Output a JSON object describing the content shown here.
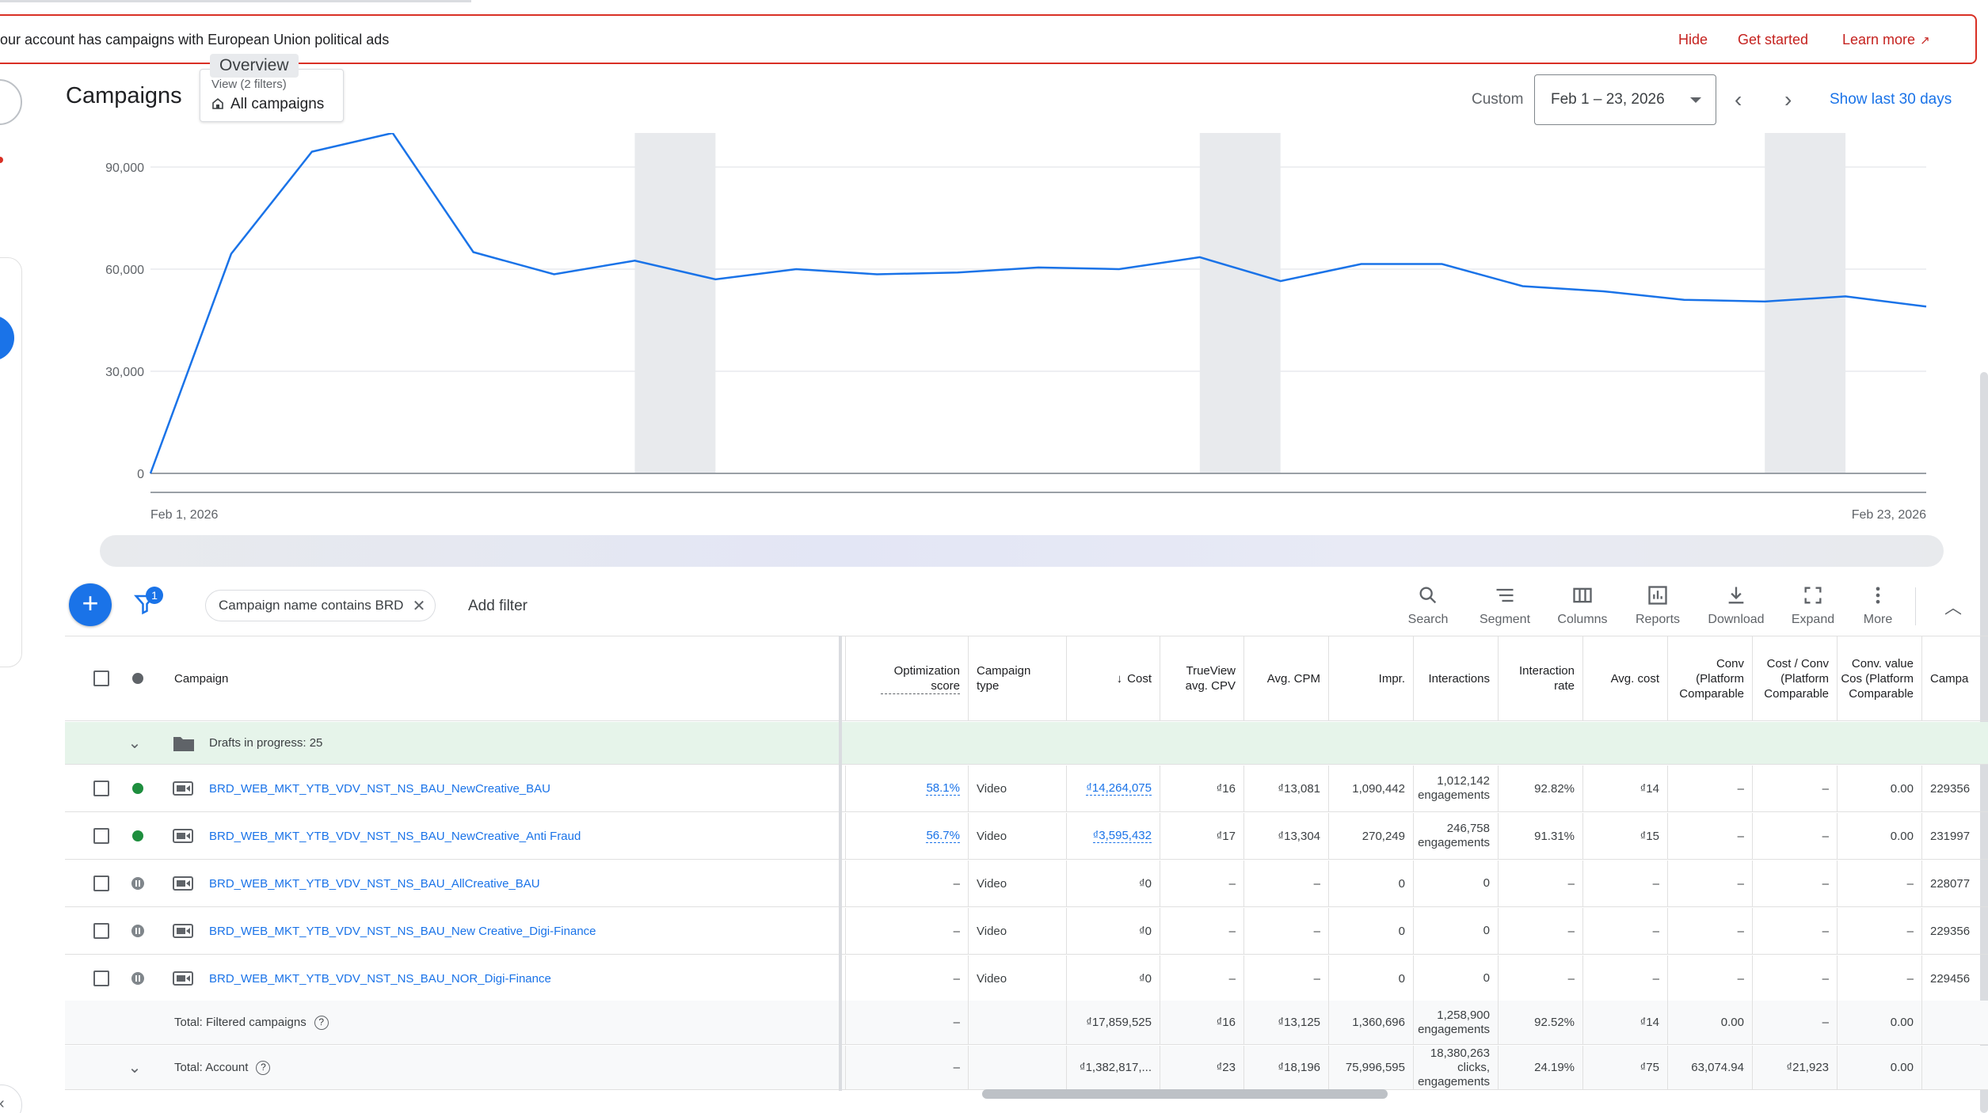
{
  "banner": {
    "text": "our account has campaigns with European Union political ads",
    "hide": "Hide",
    "get_started": "Get started",
    "learn_more": "Learn more"
  },
  "header": {
    "title": "Campaigns",
    "tooltip": "Overview",
    "view_label": "View (2 filters)",
    "view_value": "All campaigns",
    "date_mode": "Custom",
    "date_range": "Feb 1 – 23, 2026",
    "show_last": "Show last 30 days"
  },
  "chart_data": {
    "type": "line",
    "title": "",
    "xlabel": "",
    "ylabel": "",
    "ylim": [
      0,
      100000
    ],
    "yticks": [
      "0",
      "30,000",
      "60,000",
      "90,000"
    ],
    "x_start_label": "Feb 1, 2026",
    "x_end_label": "Feb 23, 2026",
    "x": [
      "Feb 1",
      "Feb 2",
      "Feb 3",
      "Feb 4",
      "Feb 5",
      "Feb 6",
      "Feb 7",
      "Feb 8",
      "Feb 9",
      "Feb 10",
      "Feb 11",
      "Feb 12",
      "Feb 13",
      "Feb 14",
      "Feb 15",
      "Feb 16",
      "Feb 17",
      "Feb 18",
      "Feb 19",
      "Feb 20",
      "Feb 21",
      "Feb 22",
      "Feb 23"
    ],
    "series": [
      {
        "values": [
          0,
          64500,
          94500,
          102000,
          65000,
          58500,
          62500,
          57000,
          60000,
          58500,
          59000,
          60500,
          60000,
          63500,
          56500,
          61500,
          61500,
          55000,
          53500,
          51000,
          50500,
          52000,
          49000
        ],
        "color": "#1a73e8"
      }
    ],
    "weekend_bands": [
      [
        "Feb 7",
        "Feb 8"
      ],
      [
        "Feb 14",
        "Feb 15"
      ],
      [
        "Feb 21",
        "Feb 22"
      ]
    ]
  },
  "toolbar": {
    "filter_count": "1",
    "filter_chip": "Campaign name contains BRD",
    "add_filter": "Add filter",
    "tools": [
      "Search",
      "Segment",
      "Columns",
      "Reports",
      "Download",
      "Expand",
      "More"
    ]
  },
  "table": {
    "headers": {
      "campaign": "Campaign",
      "opt_score": "Optimization score",
      "type": "Campaign type",
      "cost": "Cost",
      "cpv": "TrueView avg. CPV",
      "cpm": "Avg. CPM",
      "impr": "Impr.",
      "interactions": "Interactions",
      "int_rate": "Interaction rate",
      "avg_cost": "Avg. cost",
      "conv": "Conv (Platform Comparable",
      "cost_conv": "Cost / Conv (Platform Comparable",
      "conv_value": "Conv. value Cos (Platform Comparable",
      "campa": "Campa"
    },
    "drafts": "Drafts in progress: 25",
    "rows": [
      {
        "status": "enabled",
        "name": "BRD_WEB_MKT_YTB_VDV_NST_NS_BAU_NewCreative_BAU",
        "opt": "58.1%",
        "type": "Video",
        "cost": "₫14,264,075",
        "cpv": "₫16",
        "cpm": "₫13,081",
        "impr": "1,090,442",
        "int1": "1,012,142",
        "int2": "engagements",
        "rate": "92.82%",
        "avg": "₫14",
        "conv": "–",
        "costconv": "–",
        "convval": "0.00",
        "campa": "229356"
      },
      {
        "status": "enabled",
        "name": "BRD_WEB_MKT_YTB_VDV_NST_NS_BAU_NewCreative_Anti Fraud",
        "opt": "56.7%",
        "type": "Video",
        "cost": "₫3,595,432",
        "cpv": "₫17",
        "cpm": "₫13,304",
        "impr": "270,249",
        "int1": "246,758",
        "int2": "engagements",
        "rate": "91.31%",
        "avg": "₫15",
        "conv": "–",
        "costconv": "–",
        "convval": "0.00",
        "campa": "231997"
      },
      {
        "status": "paused",
        "name": "BRD_WEB_MKT_YTB_VDV_NST_NS_BAU_AllCreative_BAU",
        "opt": "–",
        "type": "Video",
        "cost": "₫0",
        "cpv": "–",
        "cpm": "–",
        "impr": "0",
        "int1": "0",
        "int2": "",
        "rate": "–",
        "avg": "–",
        "conv": "–",
        "costconv": "–",
        "convval": "–",
        "campa": "228077"
      },
      {
        "status": "paused",
        "name": "BRD_WEB_MKT_YTB_VDV_NST_NS_BAU_New Creative_Digi-Finance",
        "opt": "–",
        "type": "Video",
        "cost": "₫0",
        "cpv": "–",
        "cpm": "–",
        "impr": "0",
        "int1": "0",
        "int2": "",
        "rate": "–",
        "avg": "–",
        "conv": "–",
        "costconv": "–",
        "convval": "–",
        "campa": "229356"
      },
      {
        "status": "paused",
        "name": "BRD_WEB_MKT_YTB_VDV_NST_NS_BAU_NOR_Digi-Finance",
        "opt": "–",
        "type": "Video",
        "cost": "₫0",
        "cpv": "–",
        "cpm": "–",
        "impr": "0",
        "int1": "0",
        "int2": "",
        "rate": "–",
        "avg": "–",
        "conv": "–",
        "costconv": "–",
        "convval": "–",
        "campa": "229456"
      }
    ],
    "total_filtered": {
      "label": "Total: Filtered campaigns",
      "opt": "–",
      "cost": "₫17,859,525",
      "cpv": "₫16",
      "cpm": "₫13,125",
      "impr": "1,360,696",
      "int1": "1,258,900",
      "int2": "engagements",
      "rate": "92.52%",
      "avg": "₫14",
      "conv": "0.00",
      "costconv": "–",
      "convval": "0.00"
    },
    "total_account": {
      "label": "Total: Account",
      "opt": "–",
      "cost": "₫1,382,817,...",
      "cpv": "₫23",
      "cpm": "₫18,196",
      "impr": "75,996,595",
      "int1": "18,380,263",
      "int2": "clicks,",
      "int3": "engagements",
      "rate": "24.19%",
      "avg": "₫75",
      "conv": "63,074.94",
      "costconv": "₫21,923",
      "convval": "0.00"
    }
  }
}
